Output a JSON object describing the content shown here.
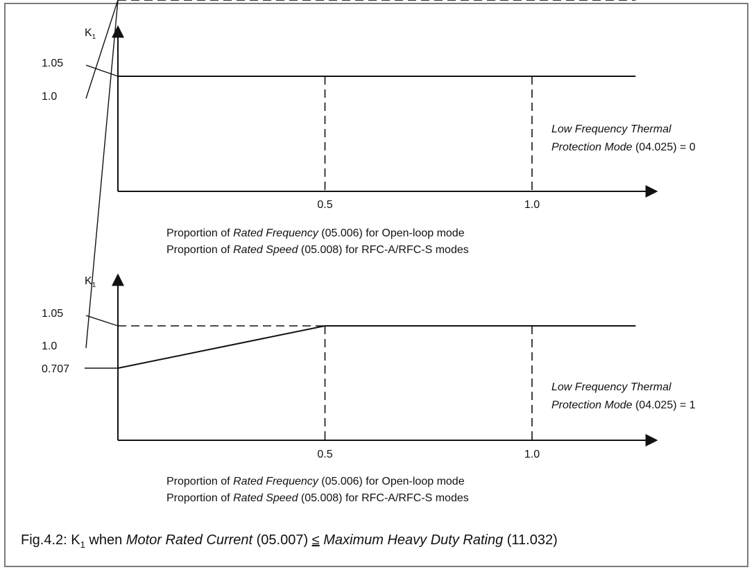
{
  "chart_data": [
    {
      "type": "line",
      "title": "",
      "ylabel": {
        "main": "K",
        "sub": "1"
      },
      "x_ticks": [
        "0.5",
        "1.0"
      ],
      "y_ticks": [
        "1.05",
        "1.0"
      ],
      "reference_lines": {
        "horizontal": [
          1.05,
          1.0
        ],
        "vertical": [
          0.5,
          1.0
        ]
      },
      "series": [
        {
          "x": [
            0,
            1.25
          ],
          "y": [
            1.05,
            1.05
          ]
        }
      ],
      "xlabel_lines": [
        {
          "pre": "Proportion of ",
          "em": "Rated Frequency",
          "post": " (05.006) for Open-loop mode"
        },
        {
          "pre": "Proportion of ",
          "em": "Rated Speed",
          "post": " (05.008) for RFC-A/RFC-S modes"
        }
      ],
      "annotation": {
        "line1_em": "Low Frequency Thermal",
        "line2_em": "Protection Mode",
        "line2_post": " (04.025) = 0"
      }
    },
    {
      "type": "line",
      "title": "",
      "ylabel": {
        "main": "K",
        "sub": "1"
      },
      "x_ticks": [
        "0.5",
        "1.0"
      ],
      "y_ticks": [
        "1.05",
        "1.0",
        "0.707"
      ],
      "reference_lines": {
        "horizontal": [
          1.05,
          1.0
        ],
        "vertical": [
          0.5,
          1.0
        ]
      },
      "series": [
        {
          "x": [
            0,
            0.5,
            1.25
          ],
          "y": [
            0.707,
            1.05,
            1.05
          ]
        }
      ],
      "xlabel_lines": [
        {
          "pre": "Proportion of ",
          "em": "Rated Frequency",
          "post": " (05.006) for Open-loop mode"
        },
        {
          "pre": "Proportion of ",
          "em": "Rated Speed",
          "post": " (05.008) for RFC-A/RFC-S modes"
        }
      ],
      "annotation": {
        "line1_em": "Low Frequency Thermal",
        "line2_em": "Protection Mode",
        "line2_post": " (04.025) = 1"
      }
    }
  ],
  "caption": {
    "p1": "Fig.4.2: K",
    "sub": "1",
    "p2": " when ",
    "em1": "Motor Rated Current",
    "p3": " (05.007) ",
    "le": "≤",
    "p4": " ",
    "em2": "Maximum Heavy Duty Rating",
    "p5": " (11.032)"
  }
}
